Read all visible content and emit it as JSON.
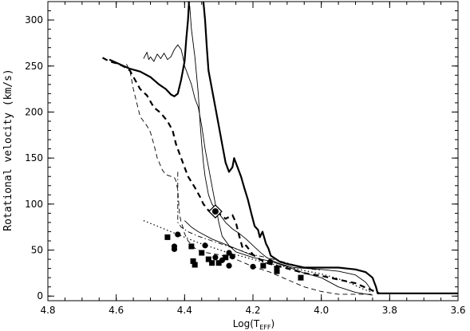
{
  "chart_data": {
    "type": "line",
    "title": "",
    "xlabel": "Log(T",
    "xlabel_sub": "EFF",
    "xlabel_close": ")",
    "ylabel": "Rotational velocity (km/s)",
    "xlim": [
      4.8,
      3.6
    ],
    "ylim": [
      -5,
      320
    ],
    "x_reversed": true,
    "grid": false,
    "legend": "none",
    "x_ticks": [
      {
        "v": 4.8,
        "label": "4.8"
      },
      {
        "v": 4.6,
        "label": "4.6"
      },
      {
        "v": 4.4,
        "label": "4.4"
      },
      {
        "v": 4.2,
        "label": "4.2"
      },
      {
        "v": 4.0,
        "label": "4.0"
      },
      {
        "v": 3.8,
        "label": "3.8"
      },
      {
        "v": 3.6,
        "label": "3.6"
      }
    ],
    "y_ticks": [
      {
        "v": 0,
        "label": "0"
      },
      {
        "v": 50,
        "label": "50"
      },
      {
        "v": 100,
        "label": "100"
      },
      {
        "v": 150,
        "label": "150"
      },
      {
        "v": 200,
        "label": "200"
      },
      {
        "v": 250,
        "label": "250"
      },
      {
        "v": 300,
        "label": "300"
      }
    ],
    "x_minor_step": 0.05,
    "y_minor_step": 10,
    "series": [
      {
        "style": "thick-solid",
        "points": [
          [
            4.345,
            320
          ],
          [
            4.34,
            300
          ],
          [
            4.335,
            270
          ],
          [
            4.33,
            245
          ],
          [
            4.32,
            225
          ],
          [
            4.31,
            205
          ],
          [
            4.3,
            185
          ],
          [
            4.29,
            165
          ],
          [
            4.28,
            145
          ],
          [
            4.27,
            135
          ],
          [
            4.26,
            140
          ],
          [
            4.255,
            150
          ],
          [
            4.245,
            140
          ],
          [
            4.235,
            130
          ],
          [
            4.225,
            117
          ],
          [
            4.215,
            105
          ],
          [
            4.205,
            90
          ],
          [
            4.195,
            76
          ],
          [
            4.185,
            72
          ],
          [
            4.18,
            64
          ],
          [
            4.172,
            70
          ],
          [
            4.162,
            57
          ],
          [
            4.155,
            52
          ],
          [
            4.148,
            44
          ],
          [
            4.14,
            42
          ],
          [
            4.12,
            37
          ],
          [
            4.1,
            35
          ],
          [
            4.05,
            31
          ],
          [
            4.0,
            31
          ],
          [
            3.95,
            31
          ],
          [
            3.9,
            29
          ],
          [
            3.87,
            26
          ],
          [
            3.85,
            20
          ],
          [
            3.84,
            10
          ],
          [
            3.835,
            3
          ],
          [
            3.6,
            3
          ]
        ]
      },
      {
        "style": "thick-solid",
        "points": [
          [
            4.62,
            257
          ],
          [
            4.59,
            252
          ],
          [
            4.56,
            247
          ],
          [
            4.53,
            244
          ],
          [
            4.5,
            238
          ],
          [
            4.475,
            230
          ],
          [
            4.455,
            225
          ],
          [
            4.44,
            219
          ],
          [
            4.43,
            217
          ],
          [
            4.42,
            220
          ],
          [
            4.41,
            235
          ],
          [
            4.4,
            255
          ],
          [
            4.395,
            280
          ],
          [
            4.39,
            300
          ],
          [
            4.387,
            320
          ]
        ]
      },
      {
        "style": "thick-dash",
        "points": [
          [
            4.64,
            259
          ],
          [
            4.62,
            255
          ],
          [
            4.6,
            253
          ],
          [
            4.58,
            250
          ],
          [
            4.56,
            245
          ],
          [
            4.53,
            225
          ],
          [
            4.51,
            218
          ],
          [
            4.49,
            205
          ],
          [
            4.47,
            199
          ],
          [
            4.45,
            190
          ],
          [
            4.435,
            180
          ],
          [
            4.425,
            165
          ],
          [
            4.41,
            150
          ],
          [
            4.39,
            130
          ],
          [
            4.37,
            118
          ],
          [
            4.355,
            108
          ],
          [
            4.345,
            100
          ],
          [
            4.33,
            93
          ],
          [
            4.3,
            90
          ],
          [
            4.28,
            84
          ],
          [
            4.27,
            86
          ],
          [
            4.26,
            88
          ],
          [
            4.25,
            80
          ],
          [
            4.24,
            65
          ],
          [
            4.23,
            52
          ],
          [
            4.22,
            55
          ],
          [
            4.21,
            50
          ],
          [
            4.2,
            45
          ],
          [
            4.18,
            40
          ],
          [
            4.16,
            36
          ],
          [
            4.12,
            32
          ],
          [
            4.08,
            28
          ],
          [
            4.05,
            25
          ],
          [
            4.0,
            22
          ],
          [
            3.95,
            18
          ],
          [
            3.9,
            14
          ],
          [
            3.85,
            6
          ],
          [
            3.83,
            3
          ]
        ]
      },
      {
        "style": "thin-dash",
        "points": [
          [
            4.57,
            252
          ],
          [
            4.56,
            245
          ],
          [
            4.55,
            225
          ],
          [
            4.54,
            210
          ],
          [
            4.53,
            195
          ],
          [
            4.51,
            185
          ],
          [
            4.5,
            178
          ],
          [
            4.49,
            165
          ],
          [
            4.48,
            150
          ],
          [
            4.465,
            137
          ],
          [
            4.455,
            132
          ],
          [
            4.44,
            130
          ],
          [
            4.43,
            129
          ],
          [
            4.425,
            125
          ],
          [
            4.42,
            115
          ],
          [
            4.415,
            90
          ],
          [
            4.41,
            80
          ],
          [
            4.405,
            75
          ],
          [
            4.4,
            68
          ],
          [
            4.39,
            60
          ],
          [
            4.37,
            52
          ],
          [
            4.35,
            48
          ],
          [
            4.3,
            45
          ],
          [
            4.25,
            40
          ],
          [
            4.2,
            32
          ],
          [
            4.15,
            26
          ],
          [
            4.1,
            18
          ],
          [
            4.05,
            10
          ],
          [
            4.0,
            5
          ],
          [
            3.95,
            2
          ],
          [
            3.9,
            2
          ],
          [
            3.85,
            2
          ]
        ]
      },
      {
        "style": "thin-solid",
        "points": [
          [
            4.52,
            258
          ],
          [
            4.51,
            265
          ],
          [
            4.505,
            257
          ],
          [
            4.5,
            260
          ],
          [
            4.49,
            255
          ],
          [
            4.48,
            263
          ],
          [
            4.47,
            258
          ],
          [
            4.46,
            264
          ],
          [
            4.45,
            257
          ],
          [
            4.44,
            260
          ],
          [
            4.43,
            268
          ],
          [
            4.42,
            273
          ],
          [
            4.41,
            268
          ],
          [
            4.405,
            260
          ],
          [
            4.4,
            250
          ],
          [
            4.395,
            245
          ],
          [
            4.39,
            240
          ],
          [
            4.385,
            235
          ],
          [
            4.38,
            230
          ],
          [
            4.37,
            215
          ],
          [
            4.36,
            205
          ],
          [
            4.35,
            185
          ],
          [
            4.34,
            160
          ],
          [
            4.33,
            140
          ],
          [
            4.32,
            120
          ],
          [
            4.31,
            100
          ],
          [
            4.3,
            80
          ],
          [
            4.29,
            65
          ],
          [
            4.27,
            55
          ],
          [
            4.25,
            48
          ],
          [
            4.2,
            42
          ],
          [
            4.15,
            38
          ],
          [
            4.1,
            32
          ],
          [
            4.05,
            25
          ],
          [
            4.0,
            20
          ],
          [
            3.95,
            10
          ],
          [
            3.9,
            4
          ],
          [
            3.85,
            1
          ]
        ]
      },
      {
        "style": "thin-solid",
        "points": [
          [
            4.39,
            320
          ],
          [
            4.385,
            315
          ],
          [
            4.38,
            290
          ],
          [
            4.37,
            260
          ],
          [
            4.36,
            220
          ],
          [
            4.355,
            190
          ],
          [
            4.35,
            165
          ],
          [
            4.345,
            145
          ],
          [
            4.34,
            130
          ],
          [
            4.335,
            120
          ],
          [
            4.33,
            110
          ],
          [
            4.32,
            100
          ],
          [
            4.3,
            90
          ],
          [
            4.28,
            80
          ],
          [
            4.26,
            73
          ],
          [
            4.24,
            68
          ],
          [
            4.22,
            62
          ],
          [
            4.2,
            55
          ],
          [
            4.18,
            48
          ],
          [
            4.16,
            42
          ],
          [
            4.14,
            38
          ],
          [
            4.12,
            35
          ],
          [
            4.1,
            33
          ],
          [
            4.08,
            31
          ],
          [
            4.0,
            29
          ],
          [
            3.95,
            27
          ],
          [
            3.9,
            23
          ],
          [
            3.87,
            15
          ],
          [
            3.85,
            5
          ]
        ]
      },
      {
        "style": "dashdot",
        "points": [
          [
            4.42,
            135
          ],
          [
            4.42,
            80
          ],
          [
            4.41,
            75
          ],
          [
            4.39,
            70
          ],
          [
            4.36,
            65
          ],
          [
            4.32,
            60
          ],
          [
            4.28,
            55
          ],
          [
            4.24,
            50
          ],
          [
            4.2,
            45
          ],
          [
            4.16,
            42
          ],
          [
            4.12,
            38
          ],
          [
            4.08,
            34
          ],
          [
            4.04,
            30
          ],
          [
            4.0,
            28
          ]
        ]
      },
      {
        "style": "dotted",
        "points": [
          [
            4.52,
            82
          ],
          [
            4.48,
            76
          ],
          [
            4.44,
            70
          ],
          [
            4.4,
            64
          ],
          [
            4.36,
            58
          ],
          [
            4.32,
            53
          ],
          [
            4.28,
            48
          ],
          [
            4.24,
            44
          ],
          [
            4.2,
            40
          ],
          [
            4.16,
            36
          ],
          [
            4.12,
            33
          ],
          [
            4.08,
            30
          ],
          [
            4.04,
            27
          ],
          [
            4.0,
            24
          ],
          [
            3.96,
            20
          ],
          [
            3.92,
            15
          ],
          [
            3.88,
            8
          ],
          [
            3.85,
            4
          ]
        ]
      },
      {
        "style": "thin-solid",
        "points": [
          [
            4.4,
            82
          ],
          [
            4.38,
            75
          ],
          [
            4.36,
            70
          ],
          [
            4.32,
            62
          ],
          [
            4.28,
            56
          ],
          [
            4.24,
            50
          ],
          [
            4.2,
            44
          ]
        ]
      }
    ],
    "squares": [
      [
        4.45,
        64
      ],
      [
        4.38,
        54
      ],
      [
        4.35,
        47
      ],
      [
        4.33,
        40
      ],
      [
        4.375,
        38
      ],
      [
        4.37,
        34
      ],
      [
        4.32,
        36
      ],
      [
        4.3,
        36
      ],
      [
        4.28,
        42
      ],
      [
        4.17,
        33
      ],
      [
        4.13,
        27
      ],
      [
        4.13,
        30
      ],
      [
        4.06,
        20
      ]
    ],
    "circles": [
      [
        4.43,
        51
      ],
      [
        4.43,
        54
      ],
      [
        4.42,
        67
      ],
      [
        4.34,
        55
      ],
      [
        4.31,
        42
      ],
      [
        4.29,
        39
      ],
      [
        4.27,
        47
      ],
      [
        4.26,
        43
      ],
      [
        4.27,
        33
      ],
      [
        4.15,
        37
      ],
      [
        4.2,
        32
      ]
    ],
    "special_marker": {
      "x": 4.31,
      "y": 92
    }
  }
}
